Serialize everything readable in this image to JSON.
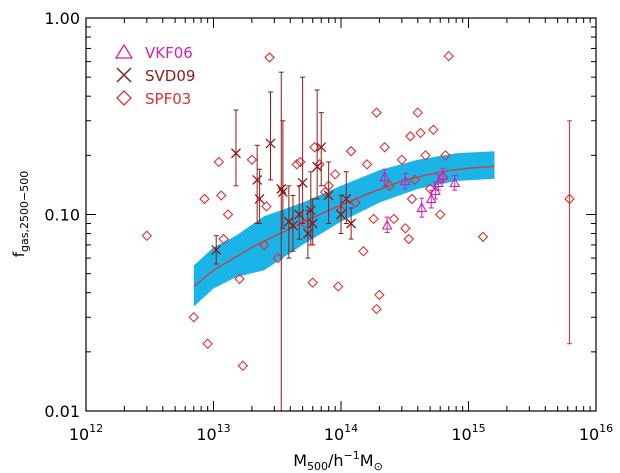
{
  "chart_data": {
    "type": "scatter",
    "xlabel_main": "M",
    "xlabel_sub": "500",
    "xlabel_mid": "/h",
    "xlabel_sup": "−1",
    "xlabel_end": "M",
    "xlabel_end_sub": "⊙",
    "ylabel_main": "f",
    "ylabel_sub": "gas,2500−500",
    "xscale": "log",
    "yscale": "log",
    "xlim": [
      1000000000000.0,
      1e+16
    ],
    "ylim": [
      0.01,
      1.0
    ],
    "x_tick_exponents": [
      "12",
      "13",
      "14",
      "15",
      "16"
    ],
    "x_tick_base": "10",
    "y_ticks": [
      {
        "value": 0.01,
        "label": "0.01"
      },
      {
        "value": 0.1,
        "label": "0.10"
      },
      {
        "value": 1.0,
        "label": "1.00"
      }
    ],
    "grid": false,
    "legend_position": "top-left",
    "colors": {
      "band": "#1ab4e8",
      "median_line": "#c84040",
      "vkf06": "#d020b0",
      "svd09": "#8b1a1a",
      "spf03": "#e03030"
    },
    "band": {
      "x": [
        7000000000000.0,
        10000000000000.0,
        15000000000000.0,
        25000000000000.0,
        50000000000000.0,
        100000000000000.0,
        200000000000000.0,
        400000000000000.0,
        800000000000000.0,
        1600000000000000.0
      ],
      "lower": [
        0.034,
        0.042,
        0.048,
        0.052,
        0.07,
        0.092,
        0.115,
        0.135,
        0.148,
        0.152
      ],
      "upper": [
        0.055,
        0.068,
        0.078,
        0.098,
        0.115,
        0.14,
        0.168,
        0.19,
        0.205,
        0.21
      ]
    },
    "median_line": {
      "x": [
        7000000000000.0,
        10000000000000.0,
        20000000000000.0,
        40000000000000.0,
        80000000000000.0,
        150000000000000.0,
        300000000000000.0,
        600000000000000.0,
        1000000000000000.0,
        1600000000000000.0
      ],
      "y": [
        0.043,
        0.052,
        0.068,
        0.085,
        0.105,
        0.125,
        0.148,
        0.165,
        0.172,
        0.176
      ]
    },
    "series": [
      {
        "name": "VKF06",
        "marker": "triangle",
        "points": [
          {
            "x": 230000000000000.0,
            "y": 0.088,
            "lo": 0.081,
            "hi": 0.097
          },
          {
            "x": 220000000000000.0,
            "y": 0.155,
            "lo": 0.14,
            "hi": 0.17
          },
          {
            "x": 320000000000000.0,
            "y": 0.148,
            "lo": 0.135,
            "hi": 0.162
          },
          {
            "x": 430000000000000.0,
            "y": 0.108,
            "lo": 0.097,
            "hi": 0.121
          },
          {
            "x": 510000000000000.0,
            "y": 0.12,
            "lo": 0.108,
            "hi": 0.133
          },
          {
            "x": 550000000000000.0,
            "y": 0.132,
            "lo": 0.12,
            "hi": 0.146
          },
          {
            "x": 580000000000000.0,
            "y": 0.145,
            "lo": 0.133,
            "hi": 0.16
          },
          {
            "x": 630000000000000.0,
            "y": 0.158,
            "lo": 0.145,
            "hi": 0.172
          },
          {
            "x": 780000000000000.0,
            "y": 0.145,
            "lo": 0.133,
            "hi": 0.158
          }
        ]
      },
      {
        "name": "SVD09",
        "marker": "x",
        "points": [
          {
            "x": 10500000000000.0,
            "y": 0.066,
            "lo": 0.056,
            "hi": 0.078
          },
          {
            "x": 15000000000000.0,
            "y": 0.205,
            "lo": 0.14,
            "hi": 0.34
          },
          {
            "x": 22000000000000.0,
            "y": 0.15,
            "lo": 0.09,
            "hi": 0.225
          },
          {
            "x": 23000000000000.0,
            "y": 0.12,
            "lo": 0.09,
            "hi": 0.17
          },
          {
            "x": 28000000000000.0,
            "y": 0.23,
            "lo": 0.15,
            "hi": 0.42
          },
          {
            "x": 34000000000000.0,
            "y": 0.135,
            "lo": 0.009,
            "hi": 0.53
          },
          {
            "x": 35000000000000.0,
            "y": 0.13,
            "lo": 0.085,
            "hi": 0.3
          },
          {
            "x": 39000000000000.0,
            "y": 0.092,
            "lo": 0.06,
            "hi": 0.14
          },
          {
            "x": 42000000000000.0,
            "y": 0.088,
            "lo": 0.065,
            "hi": 0.125
          },
          {
            "x": 47000000000000.0,
            "y": 0.1,
            "lo": 0.075,
            "hi": 0.14
          },
          {
            "x": 50000000000000.0,
            "y": 0.145,
            "lo": 0.09,
            "hi": 0.5
          },
          {
            "x": 55000000000000.0,
            "y": 0.08,
            "lo": 0.06,
            "hi": 0.105
          },
          {
            "x": 58000000000000.0,
            "y": 0.105,
            "lo": 0.07,
            "hi": 0.165
          },
          {
            "x": 60000000000000.0,
            "y": 0.09,
            "lo": 0.07,
            "hi": 0.12
          },
          {
            "x": 65000000000000.0,
            "y": 0.175,
            "lo": 0.12,
            "hi": 0.43
          },
          {
            "x": 70000000000000.0,
            "y": 0.22,
            "lo": 0.14,
            "hi": 0.33
          },
          {
            "x": 80000000000000.0,
            "y": 0.125,
            "lo": 0.09,
            "hi": 0.185
          },
          {
            "x": 100000000000000.0,
            "y": 0.1,
            "lo": 0.08,
            "hi": 0.125
          },
          {
            "x": 110000000000000.0,
            "y": 0.12,
            "lo": 0.09,
            "hi": 0.165
          },
          {
            "x": 120000000000000.0,
            "y": 0.09,
            "lo": 0.075,
            "hi": 0.108
          }
        ]
      },
      {
        "name": "SPF03",
        "marker": "diamond",
        "points": [
          {
            "x": 3000000000000.0,
            "y": 0.078
          },
          {
            "x": 7000000000000.0,
            "y": 0.03
          },
          {
            "x": 9000000000000.0,
            "y": 0.022
          },
          {
            "x": 8500000000000.0,
            "y": 0.12
          },
          {
            "x": 11000000000000.0,
            "y": 0.185
          },
          {
            "x": 11500000000000.0,
            "y": 0.125
          },
          {
            "x": 12000000000000.0,
            "y": 0.075
          },
          {
            "x": 13000000000000.0,
            "y": 0.1
          },
          {
            "x": 16000000000000.0,
            "y": 0.047
          },
          {
            "x": 17000000000000.0,
            "y": 0.017
          },
          {
            "x": 20000000000000.0,
            "y": 0.19
          },
          {
            "x": 25000000000000.0,
            "y": 0.07
          },
          {
            "x": 26000000000000.0,
            "y": 0.11
          },
          {
            "x": 27500000000000.0,
            "y": 0.63
          },
          {
            "x": 32000000000000.0,
            "y": 0.06
          },
          {
            "x": 45000000000000.0,
            "y": 0.18
          },
          {
            "x": 48000000000000.0,
            "y": 0.185
          },
          {
            "x": 52000000000000.0,
            "y": 0.09
          },
          {
            "x": 60000000000000.0,
            "y": 0.045
          },
          {
            "x": 62000000000000.0,
            "y": 0.22
          },
          {
            "x": 68000000000000.0,
            "y": 0.18
          },
          {
            "x": 75000000000000.0,
            "y": 0.13
          },
          {
            "x": 80000000000000.0,
            "y": 0.14
          },
          {
            "x": 90000000000000.0,
            "y": 0.16
          },
          {
            "x": 95000000000000.0,
            "y": 0.043
          },
          {
            "x": 100000000000000.0,
            "y": 0.105
          },
          {
            "x": 120000000000000.0,
            "y": 0.21
          },
          {
            "x": 130000000000000.0,
            "y": 0.115
          },
          {
            "x": 150000000000000.0,
            "y": 0.065
          },
          {
            "x": 160000000000000.0,
            "y": 0.18
          },
          {
            "x": 180000000000000.0,
            "y": 0.095
          },
          {
            "x": 190000000000000.0,
            "y": 0.033
          },
          {
            "x": 200000000000000.0,
            "y": 0.039
          },
          {
            "x": 190000000000000.0,
            "y": 0.33
          },
          {
            "x": 220000000000000.0,
            "y": 0.22
          },
          {
            "x": 240000000000000.0,
            "y": 0.14
          },
          {
            "x": 260000000000000.0,
            "y": 0.095
          },
          {
            "x": 300000000000000.0,
            "y": 0.19
          },
          {
            "x": 320000000000000.0,
            "y": 0.085
          },
          {
            "x": 340000000000000.0,
            "y": 0.075
          },
          {
            "x": 350000000000000.0,
            "y": 0.25
          },
          {
            "x": 360000000000000.0,
            "y": 0.12
          },
          {
            "x": 380000000000000.0,
            "y": 0.15
          },
          {
            "x": 400000000000000.0,
            "y": 0.33
          },
          {
            "x": 420000000000000.0,
            "y": 0.26
          },
          {
            "x": 460000000000000.0,
            "y": 0.2
          },
          {
            "x": 500000000000000.0,
            "y": 0.135
          },
          {
            "x": 530000000000000.0,
            "y": 0.27
          },
          {
            "x": 600000000000000.0,
            "y": 0.1
          },
          {
            "x": 630000000000000.0,
            "y": 0.155
          },
          {
            "x": 660000000000000.0,
            "y": 0.2
          },
          {
            "x": 700000000000000.0,
            "y": 0.64
          },
          {
            "x": 1300000000000000.0,
            "y": 0.077
          },
          {
            "x": 6200000000000000.0,
            "y": 0.12,
            "lo": 0.022,
            "hi": 0.3
          }
        ]
      }
    ]
  }
}
